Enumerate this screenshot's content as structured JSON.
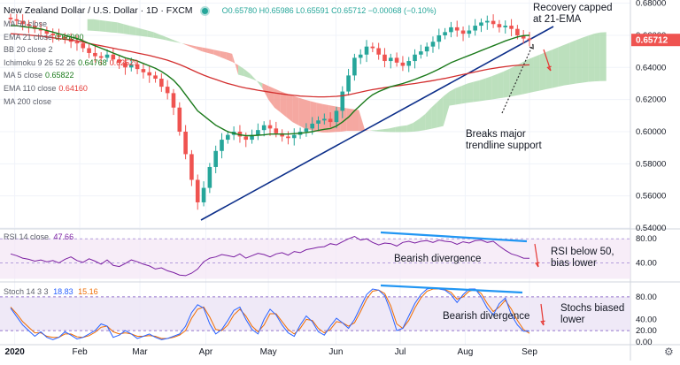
{
  "header": {
    "symbol": "New Zealand Dollar / U.S. Dollar · 1D · FXCM",
    "ohlc": "O0.65780 H0.65986 L0.65591 C0.65712 −0.00068 (−0.10%)"
  },
  "indicators": [
    {
      "label": "MA 50 close",
      "value": "",
      "color": "#9598a1"
    },
    {
      "label": "EMA 21 close",
      "value": "0.66000",
      "color": "#1b7a1b"
    },
    {
      "label": "BB 20 close 2",
      "value": "",
      "color": "#9598a1"
    },
    {
      "label": "Ichimoku 9 26 52 26",
      "value": "0.64768",
      "value2": "0.62529",
      "color": "#1b7a1b",
      "color2": "#e53935"
    },
    {
      "label": "MA 5 close",
      "value": "0.65822",
      "color": "#1b7a1b"
    },
    {
      "label": "EMA 110 close",
      "value": "0.64160",
      "color": "#e53935"
    },
    {
      "label": "MA 200 close",
      "value": "",
      "color": "#9598a1"
    }
  ],
  "rsi_header": {
    "label": "RSI 14 close",
    "value": "47.66"
  },
  "stoch_header": {
    "label": "Stoch 14 3 3",
    "k": "18.83",
    "d": "15.16"
  },
  "annotations": {
    "recovery": [
      "Recovery capped",
      "at 21-EMA"
    ],
    "breaks": [
      "Breaks major",
      "trendline support"
    ],
    "rsi_div": "Bearish divergence",
    "rsi_note": [
      "RSI below 50,",
      "bias lower"
    ],
    "stoch_div": "Bearish divergence",
    "stoch_note": [
      "Stochs biased",
      "lower"
    ]
  },
  "last_price": "0.65712",
  "colors": {
    "up": "#26a69a",
    "down": "#ef5350",
    "ema21": "#1b7a1b",
    "ema110": "#d32f2f",
    "trend": "#0d2f8a",
    "cloud_bull": "#a5d6a7",
    "cloud_bear": "#f28b82",
    "rsi": "#7b1fa2",
    "stoch_k": "#2962ff",
    "stoch_d": "#ef6c00",
    "divergence": "#2196f3",
    "annotation": "#131722",
    "arrow": "#e53935"
  },
  "chart_data": [
    {
      "type": "candlestick",
      "x_ticks": [
        "2020",
        "Feb",
        "Mar",
        "Apr",
        "May",
        "Jun",
        "Jul",
        "Aug",
        "Sep"
      ],
      "y_ticks": [
        "0.68000",
        "0.66000",
        "0.64000",
        "0.62000",
        "0.60000",
        "0.58000",
        "0.56000",
        "0.54000"
      ],
      "ylim": [
        0.54,
        0.682
      ],
      "series": [
        {
          "name": "Close",
          "values": [
            0.67,
            0.669,
            0.667,
            0.666,
            0.664,
            0.663,
            0.661,
            0.66,
            0.659,
            0.658,
            0.656,
            0.655,
            0.652,
            0.649,
            0.647,
            0.646,
            0.648,
            0.645,
            0.643,
            0.64,
            0.642,
            0.639,
            0.637,
            0.635,
            0.633,
            0.628,
            0.624,
            0.615,
            0.6,
            0.586,
            0.57,
            0.556,
            0.565,
            0.578,
            0.588,
            0.595,
            0.598,
            0.6,
            0.597,
            0.595,
            0.598,
            0.601,
            0.604,
            0.602,
            0.599,
            0.597,
            0.596,
            0.598,
            0.6,
            0.602,
            0.605,
            0.607,
            0.608,
            0.606,
            0.613,
            0.625,
            0.635,
            0.646,
            0.648,
            0.653,
            0.652,
            0.648,
            0.644,
            0.646,
            0.643,
            0.641,
            0.644,
            0.648,
            0.65,
            0.653,
            0.656,
            0.66,
            0.662,
            0.665,
            0.663,
            0.661,
            0.663,
            0.666,
            0.668,
            0.669,
            0.667,
            0.665,
            0.666,
            0.664,
            0.66,
            0.658,
            0.6571
          ]
        },
        {
          "name": "EMA 21",
          "values": [
            0.666,
            0.666,
            0.6655,
            0.665,
            0.6645,
            0.664,
            0.663,
            0.662,
            0.661,
            0.66,
            0.659,
            0.658,
            0.6565,
            0.655,
            0.6535,
            0.652,
            0.6505,
            0.649,
            0.6475,
            0.646,
            0.645,
            0.644,
            0.6425,
            0.641,
            0.6395,
            0.6375,
            0.635,
            0.632,
            0.628,
            0.623,
            0.618,
            0.613,
            0.61,
            0.607,
            0.604,
            0.602,
            0.6,
            0.599,
            0.598,
            0.5975,
            0.5975,
            0.5978,
            0.598,
            0.5985,
            0.5985,
            0.5985,
            0.5985,
            0.5988,
            0.599,
            0.5995,
            0.6,
            0.6008,
            0.6015,
            0.602,
            0.6035,
            0.606,
            0.609,
            0.613,
            0.6165,
            0.62,
            0.623,
            0.625,
            0.6265,
            0.628,
            0.629,
            0.63,
            0.6312,
            0.6325,
            0.634,
            0.6355,
            0.6372,
            0.639,
            0.641,
            0.643,
            0.6445,
            0.646,
            0.6475,
            0.649,
            0.6505,
            0.652,
            0.6535,
            0.655,
            0.6565,
            0.6578,
            0.659,
            0.6598,
            0.66
          ]
        },
        {
          "name": "EMA 110",
          "values": [
            0.661,
            0.6608,
            0.6605,
            0.6602,
            0.6598,
            0.6595,
            0.659,
            0.6585,
            0.658,
            0.6575,
            0.657,
            0.6565,
            0.6558,
            0.655,
            0.6542,
            0.6535,
            0.6528,
            0.652,
            0.6512,
            0.6505,
            0.6498,
            0.649,
            0.6482,
            0.6475,
            0.6465,
            0.6455,
            0.6445,
            0.6432,
            0.6418,
            0.6402,
            0.6385,
            0.6368,
            0.6352,
            0.6338,
            0.6325,
            0.6312,
            0.63,
            0.629,
            0.628,
            0.6272,
            0.6265,
            0.6258,
            0.6252,
            0.6246,
            0.624,
            0.6235,
            0.623,
            0.6226,
            0.6222,
            0.622,
            0.6218,
            0.6217,
            0.6217,
            0.6218,
            0.622,
            0.6224,
            0.623,
            0.6238,
            0.6246,
            0.6255,
            0.6262,
            0.6268,
            0.6274,
            0.628,
            0.6285,
            0.629,
            0.6295,
            0.63,
            0.6306,
            0.6312,
            0.6318,
            0.6325,
            0.6332,
            0.634,
            0.6348,
            0.6356,
            0.6364,
            0.6372,
            0.638,
            0.6388,
            0.6394,
            0.64,
            0.6405,
            0.641,
            0.6413,
            0.6415,
            0.6416
          ]
        }
      ]
    },
    {
      "type": "line",
      "name": "RSI",
      "y_ticks": [
        "80.00",
        "40.00"
      ],
      "ylim": [
        10,
        95
      ],
      "series": [
        {
          "name": "RSI 14",
          "values": [
            55,
            52,
            48,
            46,
            43,
            45,
            42,
            44,
            40,
            46,
            50,
            44,
            41,
            47,
            43,
            38,
            45,
            36,
            34,
            39,
            45,
            42,
            38,
            35,
            30,
            32,
            27,
            24,
            20,
            19,
            23,
            30,
            42,
            48,
            50,
            54,
            52,
            50,
            55,
            48,
            52,
            56,
            54,
            50,
            55,
            57,
            53,
            59,
            57,
            62,
            64,
            66,
            67,
            72,
            70,
            75,
            80,
            84,
            78,
            80,
            74,
            70,
            73,
            72,
            68,
            74,
            76,
            73,
            76,
            77,
            74,
            78,
            76,
            75,
            71,
            75,
            73,
            77,
            78,
            74,
            76,
            68,
            61,
            55,
            52,
            48,
            47.66
          ]
        }
      ]
    },
    {
      "type": "line",
      "name": "Stochastic",
      "y_ticks": [
        "80.00",
        "40.00",
        "20.00",
        "0.00"
      ],
      "ylim": [
        -5,
        105
      ],
      "series": [
        {
          "name": "%K",
          "values": [
            60,
            45,
            30,
            20,
            10,
            18,
            8,
            4,
            8,
            18,
            12,
            5,
            8,
            14,
            20,
            32,
            28,
            8,
            12,
            20,
            14,
            6,
            10,
            14,
            8,
            4,
            6,
            10,
            14,
            28,
            52,
            66,
            60,
            32,
            14,
            22,
            38,
            56,
            62,
            40,
            22,
            14,
            40,
            58,
            48,
            30,
            16,
            10,
            30,
            46,
            36,
            18,
            12,
            28,
            42,
            34,
            24,
            40,
            62,
            84,
            94,
            92,
            82,
            54,
            20,
            24,
            46,
            68,
            84,
            94,
            96,
            94,
            92,
            84,
            70,
            84,
            94,
            94,
            80,
            60,
            48,
            68,
            78,
            48,
            30,
            19,
            18.83
          ]
        },
        {
          "name": "%D",
          "values": [
            62,
            50,
            36,
            26,
            16,
            16,
            10,
            8,
            8,
            14,
            14,
            9,
            8,
            11,
            17,
            26,
            28,
            18,
            14,
            16,
            14,
            10,
            10,
            11,
            10,
            6,
            6,
            8,
            12,
            20,
            42,
            58,
            62,
            44,
            22,
            20,
            30,
            48,
            58,
            46,
            28,
            18,
            30,
            50,
            50,
            36,
            22,
            14,
            24,
            40,
            38,
            24,
            16,
            22,
            36,
            34,
            28,
            34,
            54,
            76,
            90,
            92,
            86,
            64,
            32,
            24,
            38,
            60,
            78,
            90,
            94,
            94,
            93,
            88,
            76,
            80,
            90,
            93,
            86,
            68,
            54,
            62,
            74,
            58,
            38,
            22,
            15.16
          ]
        }
      ]
    }
  ]
}
